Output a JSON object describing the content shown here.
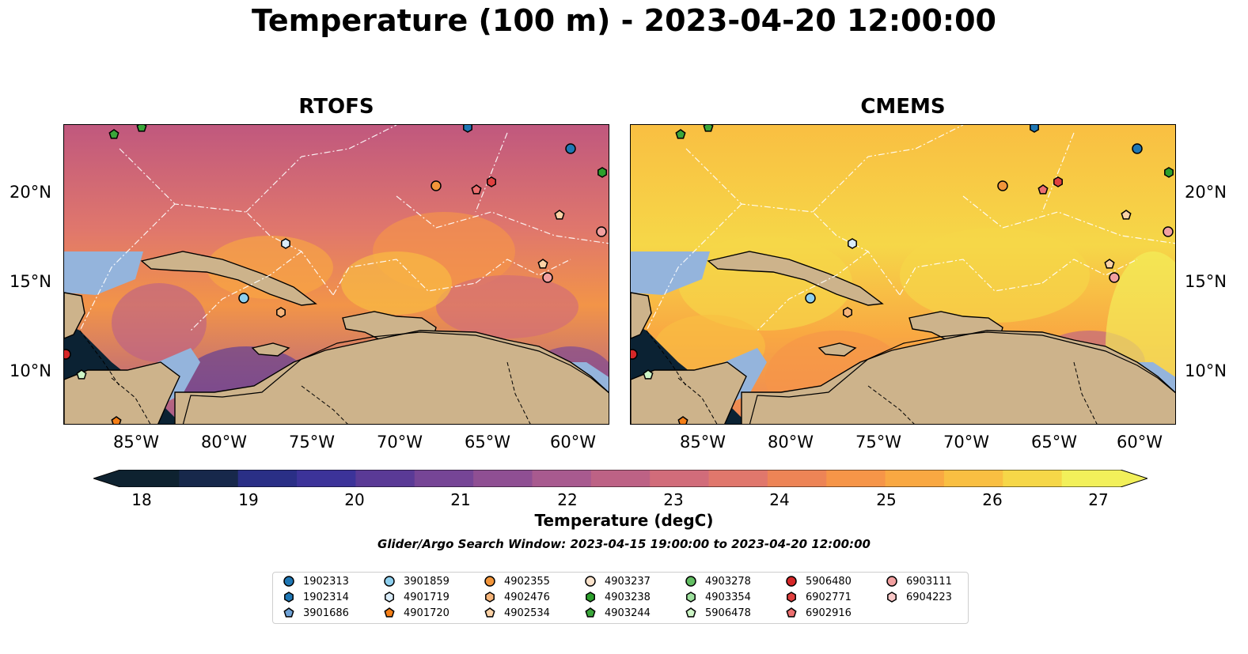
{
  "title": "Temperature (100 m) - 2023-04-20 12:00:00",
  "panels": [
    {
      "title": "RTOFS",
      "variant": "rtofs"
    },
    {
      "title": "CMEMS",
      "variant": "cmems"
    }
  ],
  "axes": {
    "x_ticks": [
      "85°W",
      "80°W",
      "75°W",
      "70°W",
      "65°W",
      "60°W"
    ],
    "y_ticks": [
      "20°N",
      "15°N",
      "10°N"
    ]
  },
  "colorbar": {
    "label": "Temperature (degC)",
    "ticks": [
      "18",
      "19",
      "20",
      "21",
      "22",
      "23",
      "24",
      "25",
      "26",
      "27"
    ],
    "colors": [
      "#0e2230",
      "#17284b",
      "#2a2f86",
      "#3c3399",
      "#5a3a96",
      "#764596",
      "#8f4f93",
      "#a85a8f",
      "#bd6285",
      "#d16c7a",
      "#e0776c",
      "#ed8456",
      "#f69548",
      "#f9a842",
      "#f9bf42",
      "#f6d748",
      "#f2f05a"
    ]
  },
  "subtitle": "Glider/Argo Search Window: 2023-04-15 19:00:00 to 2023-04-20 12:00:00",
  "legend": {
    "items": [
      {
        "label": "1902313",
        "marker": "circle",
        "color": "#1f77b4"
      },
      {
        "label": "1902314",
        "marker": "hexagon",
        "color": "#1f77b4"
      },
      {
        "label": "3901686",
        "marker": "pentagon",
        "color": "#6fa2d6"
      },
      {
        "label": "3901859",
        "marker": "circle",
        "color": "#8ecfee"
      },
      {
        "label": "4901719",
        "marker": "hexagon",
        "color": "#d9ecf9"
      },
      {
        "label": "4901720",
        "marker": "pentagon",
        "color": "#f57f17"
      },
      {
        "label": "4902355",
        "marker": "circle",
        "color": "#f2953a"
      },
      {
        "label": "4902476",
        "marker": "hexagon",
        "color": "#f7b57a"
      },
      {
        "label": "4902534",
        "marker": "pentagon",
        "color": "#fcd2a6"
      },
      {
        "label": "4903237",
        "marker": "circle",
        "color": "#fbe3cc"
      },
      {
        "label": "4903238",
        "marker": "hexagon",
        "color": "#2ca02c"
      },
      {
        "label": "4903244",
        "marker": "pentagon",
        "color": "#3aa63a"
      },
      {
        "label": "4903278",
        "marker": "circle",
        "color": "#63be63"
      },
      {
        "label": "4903354",
        "marker": "hexagon",
        "color": "#9de09d"
      },
      {
        "label": "5906478",
        "marker": "pentagon",
        "color": "#cdf5c6"
      },
      {
        "label": "5906480",
        "marker": "circle",
        "color": "#d62728"
      },
      {
        "label": "6902771",
        "marker": "hexagon",
        "color": "#e0403f"
      },
      {
        "label": "6902916",
        "marker": "pentagon",
        "color": "#ec6f6f"
      },
      {
        "label": "6903111",
        "marker": "circle",
        "color": "#f2a0a0"
      },
      {
        "label": "6904223",
        "marker": "hexagon",
        "color": "#f9c8c8"
      }
    ]
  }
}
